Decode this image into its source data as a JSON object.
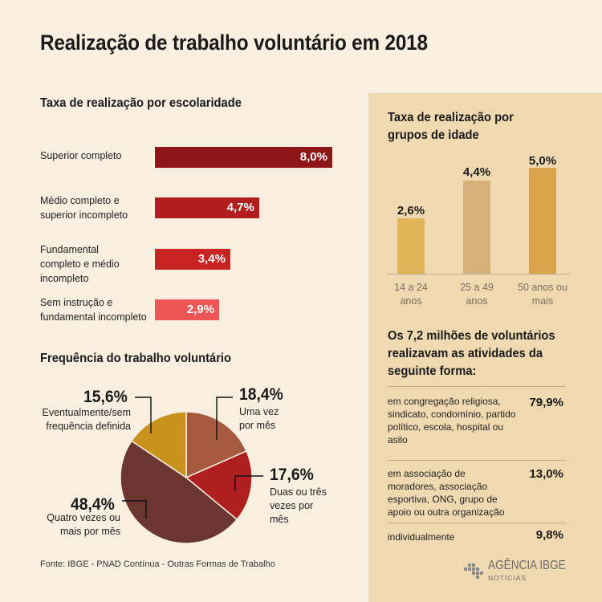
{
  "title": "Realização de trabalho voluntário em 2018",
  "colors": {
    "background": "#f8efe0",
    "panel": "#f0d9b0",
    "edu": [
      "#8f1616",
      "#b01e1e",
      "#c92222",
      "#ee5656"
    ],
    "age": [
      "#e2b55a",
      "#d8b07a",
      "#d9a44a"
    ],
    "pie": [
      "#a65b40",
      "#b01f1f",
      "#6b3530",
      "#c8921c"
    ]
  },
  "education": {
    "title": "Taxa de realização por escolaridade",
    "items": [
      {
        "label": "Superior completo",
        "value_label": "8,0%"
      },
      {
        "label": "Médio completo e superior incompleto",
        "value_label": "4,7%"
      },
      {
        "label": "Fundamental completo e médio incompleto",
        "value_label": "3,4%"
      },
      {
        "label": "Sem instrução e fundamental incompleto",
        "value_label": "2,9%"
      }
    ]
  },
  "frequency": {
    "title": "Frequência do trabalho voluntário",
    "items": [
      {
        "pct": "18,4%",
        "label": "Uma vez por mês"
      },
      {
        "pct": "17,6%",
        "label": "Duas ou três vezes por mês"
      },
      {
        "pct": "48,4%",
        "label": "Quatro vezes ou mais por mês"
      },
      {
        "pct": "15,6%",
        "label": "Eventualmente/sem frequência definida"
      }
    ]
  },
  "age": {
    "title": "Taxa de realização por grupos de idade",
    "items": [
      {
        "label": "14 a 24 anos",
        "value_label": "2,6%"
      },
      {
        "label": "25 a 49 anos",
        "value_label": "4,4%"
      },
      {
        "label": "50 anos ou mais",
        "value_label": "5,0%"
      }
    ]
  },
  "volunteers": {
    "title": "Os 7,2 milhões de voluntários realizavam as atividades da seguinte forma:",
    "items": [
      {
        "desc": "em congregação religiosa, sindicato, condomínio, partido político, escola, hospital ou asilo",
        "value": "79,9%"
      },
      {
        "desc": "em associação de moradores, associação esportiva, ONG, grupo de apoio ou outra organização",
        "value": "13,0%"
      },
      {
        "desc": "individualmente",
        "value": "9,8%"
      }
    ]
  },
  "source": "Fonte: IBGE - PNAD Contínua - Outras Formas de Trabalho",
  "logo": {
    "main": "AGÊNCIA IBGE",
    "sub": "NOTÍCIAS",
    "icon": "ibge-logo-icon"
  },
  "chart_data": [
    {
      "type": "bar",
      "orientation": "horizontal",
      "title": "Taxa de realização por escolaridade",
      "categories": [
        "Superior completo",
        "Médio completo e superior incompleto",
        "Fundamental completo e médio incompleto",
        "Sem instrução e fundamental incompleto"
      ],
      "values": [
        8.0,
        4.7,
        3.4,
        2.9
      ],
      "unit": "%"
    },
    {
      "type": "pie",
      "title": "Frequência do trabalho voluntário",
      "categories": [
        "Uma vez por mês",
        "Duas ou três vezes por mês",
        "Quatro vezes ou mais por mês",
        "Eventualmente/sem frequência definida"
      ],
      "values": [
        18.4,
        17.6,
        48.4,
        15.6
      ],
      "unit": "%"
    },
    {
      "type": "bar",
      "title": "Taxa de realização por grupos de idade",
      "categories": [
        "14 a 24 anos",
        "25 a 49 anos",
        "50 anos ou mais"
      ],
      "values": [
        2.6,
        4.4,
        5.0
      ],
      "unit": "%"
    }
  ]
}
